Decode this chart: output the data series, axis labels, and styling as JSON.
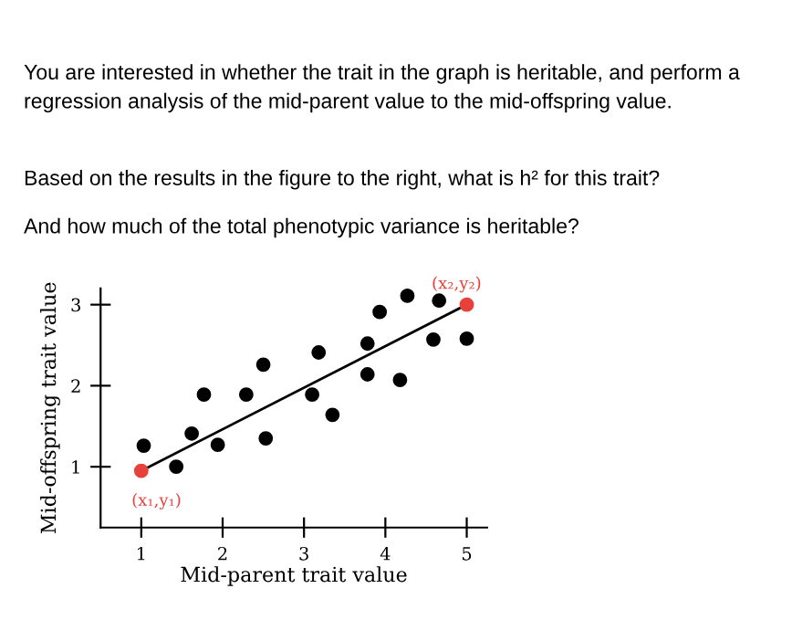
{
  "chart_data": {
    "type": "scatter",
    "title": "You are interested in whether the trait in the graph is heritable, and perform a regression analysis of the mid-parent value to the mid-offspring value.",
    "subtitle": "Based on the results in the figure to the right, what is h² for this trait?",
    "xlabel": "Mid-parent trait value",
    "ylabel": "Mid-offspring trait value",
    "xlim": [
      0.5,
      5.25
    ],
    "ylim": [
      0.25,
      3.2
    ],
    "xticks": [
      1,
      2,
      3,
      4,
      5
    ],
    "yticks": [
      1,
      2,
      3
    ],
    "grid": false,
    "marker": "circle",
    "series": [
      {
        "color": "#000000",
        "x": [
          1.03,
          1.43,
          1.62,
          1.77,
          1.94,
          2.29,
          2.5,
          2.53,
          3.1,
          3.18,
          3.35,
          3.78,
          3.78,
          3.93,
          4.18,
          4.27,
          4.59,
          4.66,
          5.0
        ],
        "values": [
          1.26,
          1.0,
          1.41,
          1.89,
          1.27,
          1.89,
          2.26,
          1.35,
          1.89,
          2.41,
          1.64,
          2.52,
          2.14,
          2.91,
          2.07,
          3.11,
          2.57,
          3.05,
          2.58
        ]
      },
      {
        "type": "line",
        "color": "#000000",
        "x": [
          1,
          5
        ],
        "values": [
          0.95,
          3.0
        ],
        "marker": "none"
      },
      {
        "color": "#e8403a",
        "x": [
          1,
          5
        ],
        "values": [
          0.95,
          3.0
        ]
      }
    ],
    "annotations": [
      "And how much of the total phenotypic variance is heritable?",
      {
        "text": "(x₁,y₁)",
        "x": 1,
        "y": 0.95
      },
      {
        "text": "(x₂,y₂)",
        "x": 5,
        "y": 3.0
      }
    ]
  }
}
